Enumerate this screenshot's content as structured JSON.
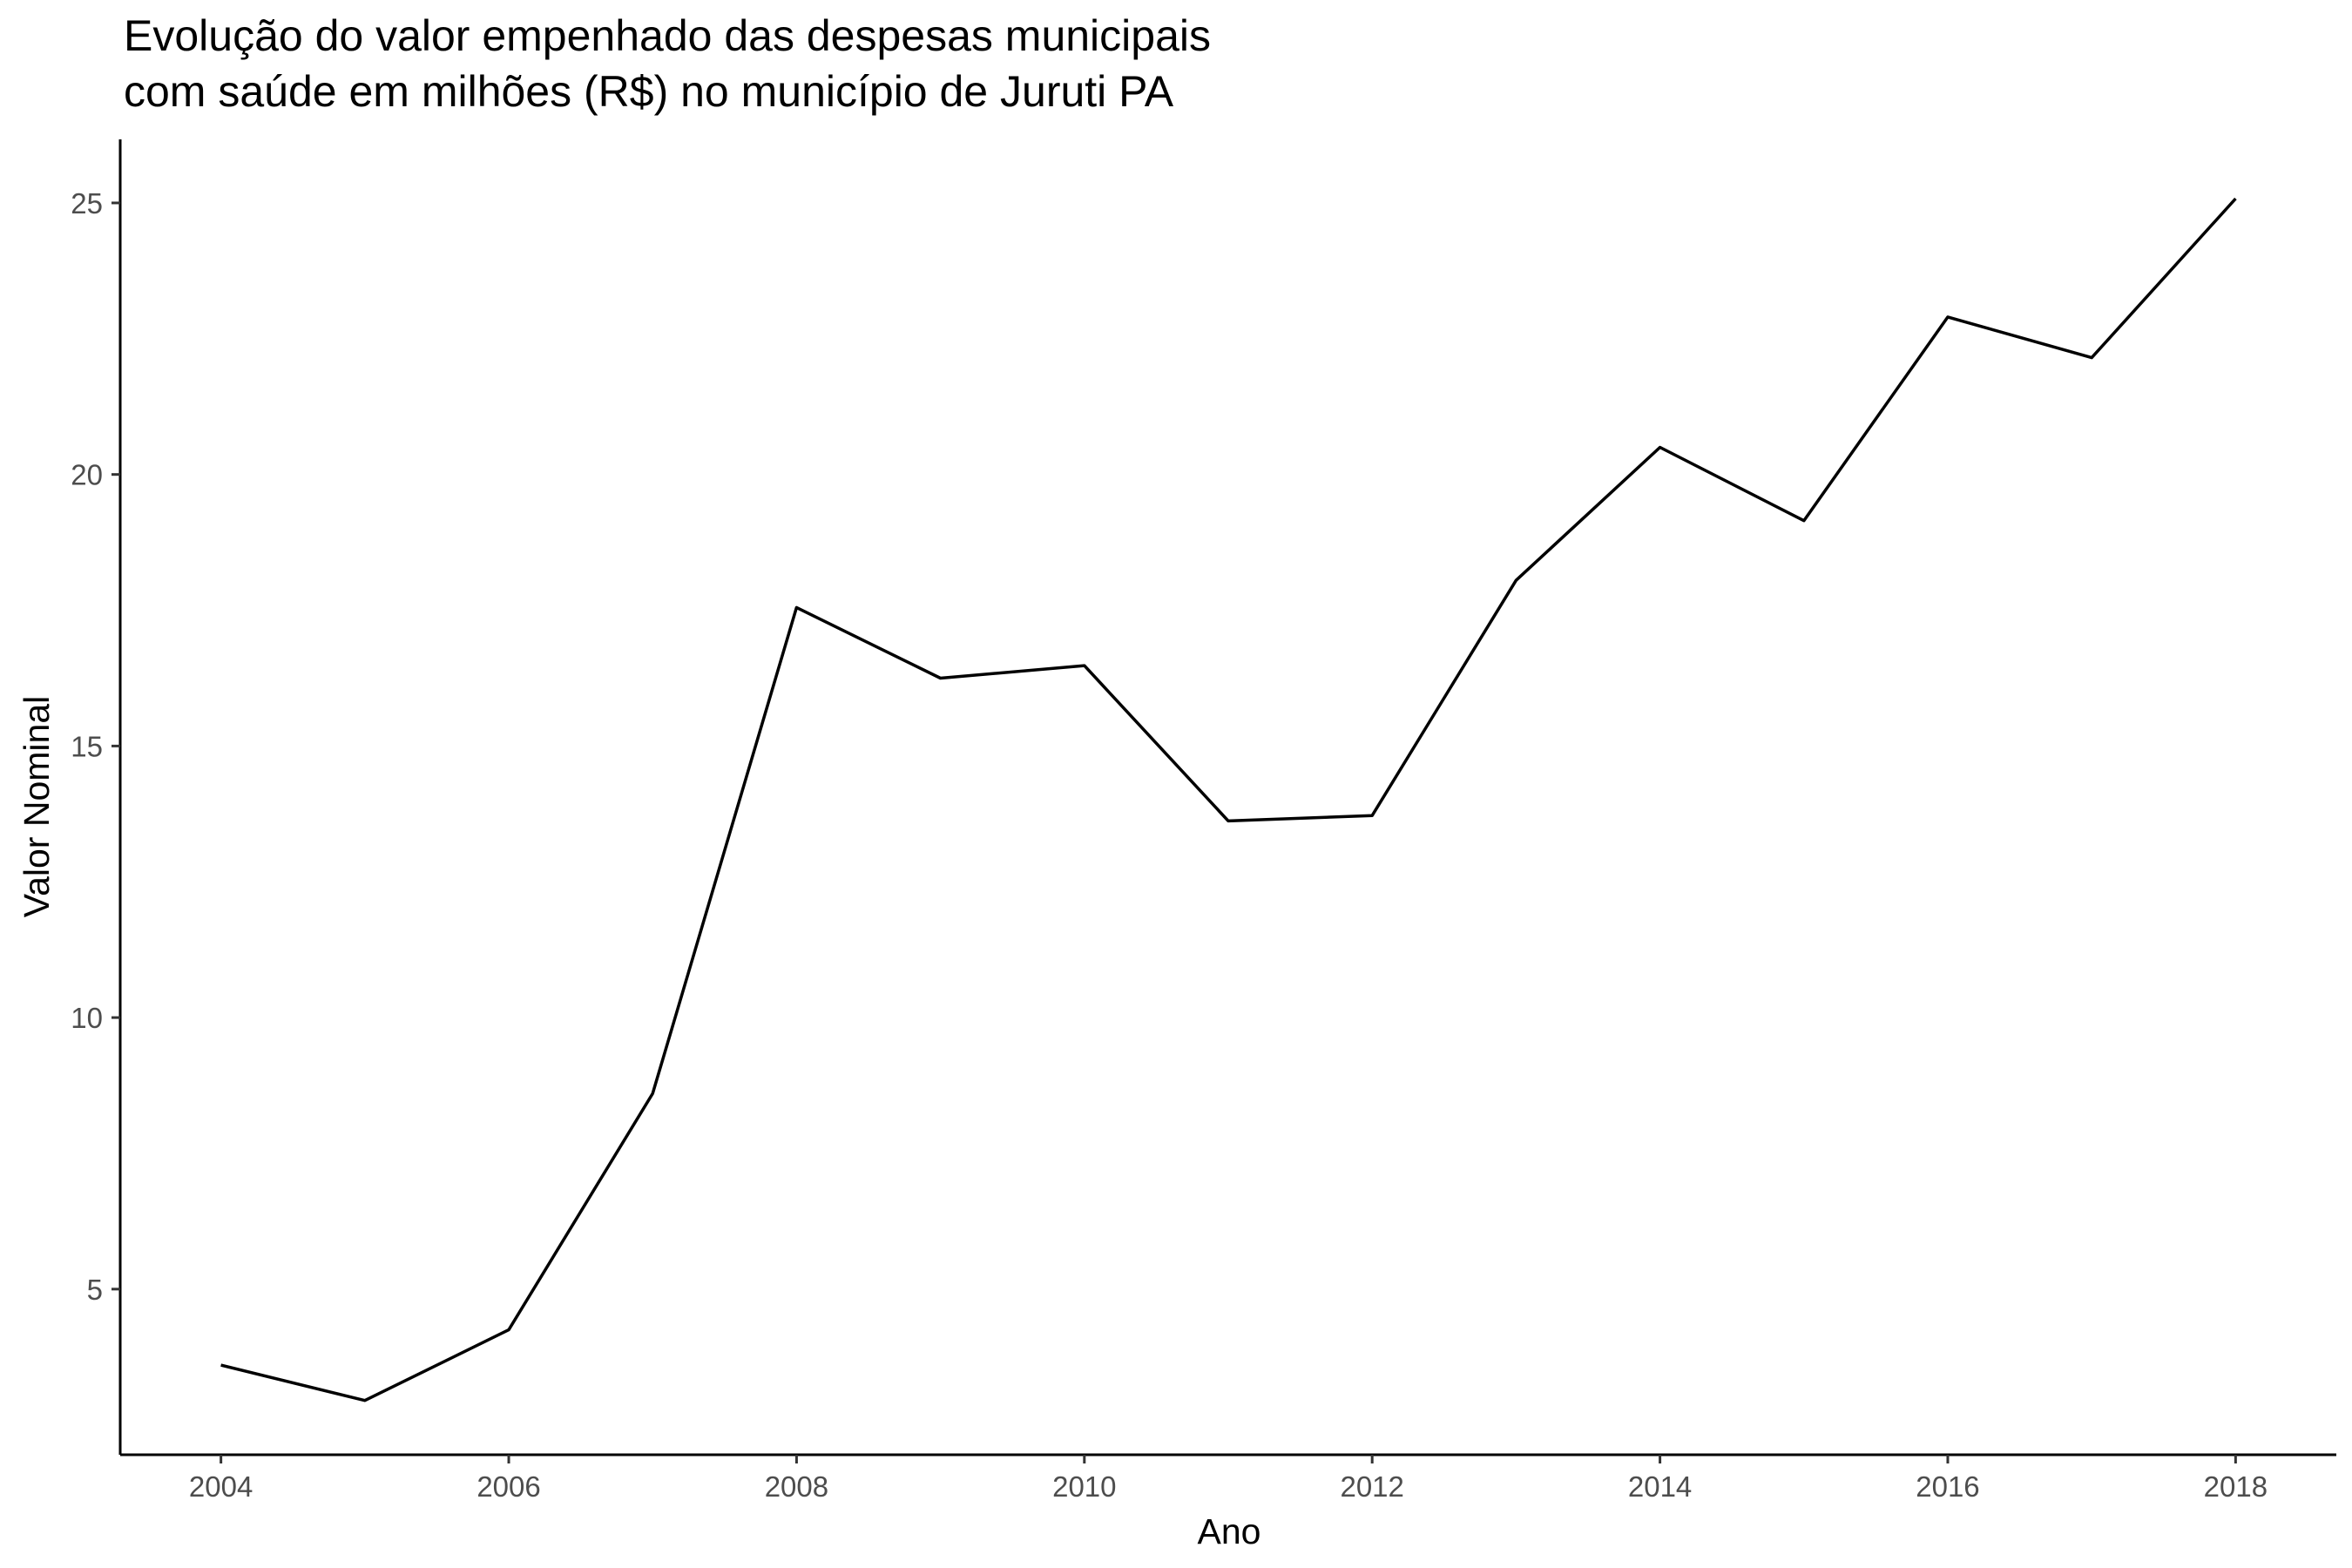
{
  "chart_data": {
    "type": "line",
    "title": [
      "Evolução do valor empenhado das despesas municipais",
      "com saúde em milhões (R$) no município de Juruti PA"
    ],
    "xlabel": "Ano",
    "ylabel": "Valor Nominal",
    "x": [
      2004,
      2005,
      2006,
      2007,
      2008,
      2009,
      2010,
      2011,
      2012,
      2013,
      2014,
      2015,
      2016,
      2017,
      2018
    ],
    "series": [
      {
        "values": [
          3.6,
          2.95,
          4.25,
          8.6,
          17.55,
          16.25,
          16.48,
          13.62,
          13.72,
          18.05,
          20.5,
          19.15,
          22.9,
          22.15,
          25.08
        ]
      }
    ],
    "xlim": [
      2003.3,
      2018.7
    ],
    "ylim": [
      1.95,
      26.17
    ],
    "xticks": [
      "2004",
      "2006",
      "2008",
      "2010",
      "2012",
      "2014",
      "2016",
      "2018"
    ],
    "yticks": [
      "5",
      "10",
      "15",
      "20",
      "25"
    ],
    "grid": false,
    "legend": "none",
    "line_color": "#000000"
  }
}
